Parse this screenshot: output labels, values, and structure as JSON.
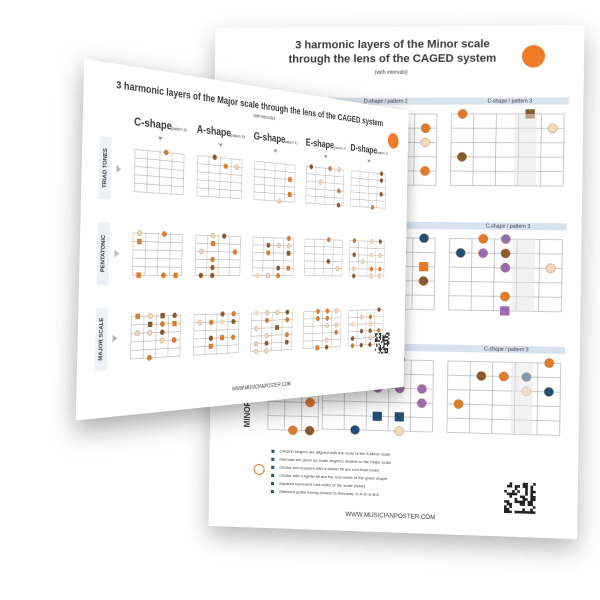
{
  "back_poster": {
    "title_line1": "3 harmonic layers of the Minor scale",
    "title_line2": "through the lens of the CAGED system",
    "subtitle": "(with intervals)",
    "pattern_labels": [
      "D-shape / pattern 2",
      "C-shape / pattern 3"
    ],
    "row_label": "MINOR",
    "legend": [
      "CAGED shapes are aligned with the roots of the A Minor scale",
      "Intervals are given as scale degrees relative to the Major scale",
      "Circles and squares with a darker fill are root triad tones",
      "Circles with a lighter fill are the root notes of the given shape",
      "Squares represent root notes of the scale (tonic)",
      "Standard guitar tuning (lowest to thinnest): E-A-D-G-B-E"
    ],
    "website": "WWW.MUSICIANPOSTER.COM"
  },
  "front_poster": {
    "title": "3 harmonic layers of the Major scale through the lens of the CAGED system",
    "subtitle": "(with intervals)",
    "shapes": [
      {
        "name": "C-shape",
        "pattern": "(pattern 4)"
      },
      {
        "name": "A-shape",
        "pattern": "(pattern 5)"
      },
      {
        "name": "G-shape",
        "pattern": "(pattern 1)"
      },
      {
        "name": "E-shape",
        "pattern": "(pattern 2)"
      },
      {
        "name": "D-shape",
        "pattern": "(pattern 3)"
      }
    ],
    "rows": [
      "TRIAD TONES",
      "PENTATONIC",
      "MAJOR SCALE"
    ],
    "website": "WWW.MUSICIANPOSTER.COM"
  }
}
